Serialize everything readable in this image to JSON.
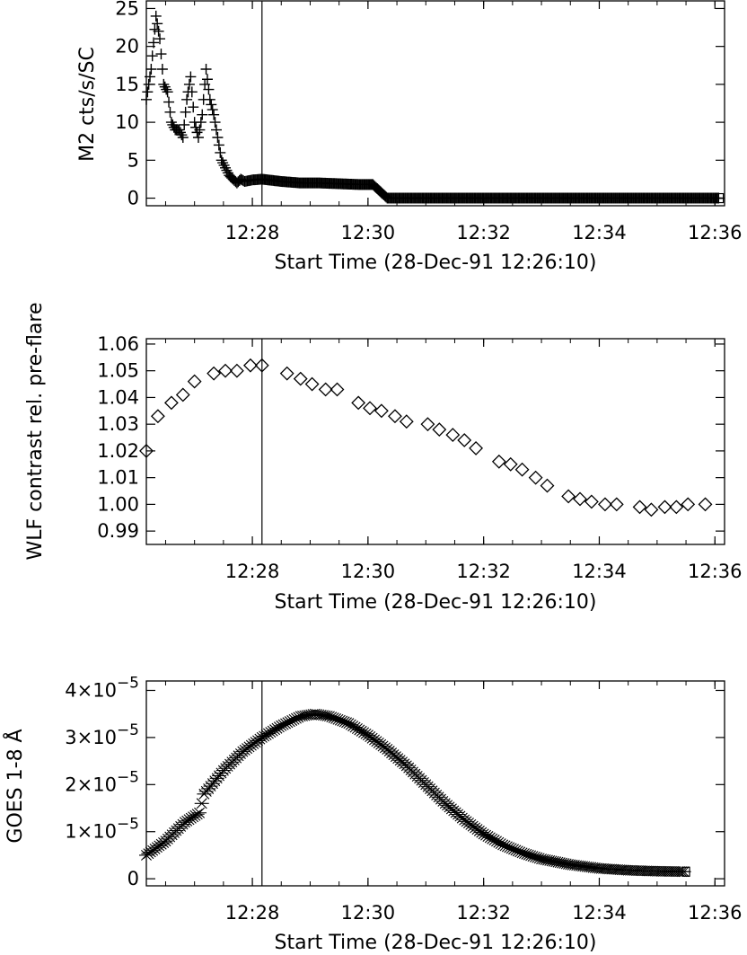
{
  "chart_data": [
    {
      "type": "scatter",
      "marker": "plus",
      "ylabel": "M2 cts/s/SC",
      "xlabel": "Start Time (28-Dec-91 12:26:10)",
      "xlim": [
        "12:26:10",
        "12:36:10"
      ],
      "ylim": [
        -1,
        26
      ],
      "x_ticks": [
        "12:28",
        "12:30",
        "12:32",
        "12:34",
        "12:36"
      ],
      "y_ticks": [
        "0",
        "5",
        "10",
        "15",
        "20",
        "25"
      ],
      "vertical_line_at": "12:28:10",
      "series": [
        {
          "x": [
            "12:26:10",
            "12:26:15",
            "12:26:20",
            "12:26:24",
            "12:26:28",
            "12:26:32",
            "12:26:36",
            "12:26:40",
            "12:26:44",
            "12:26:48",
            "12:26:52",
            "12:26:56",
            "12:27:00",
            "12:27:04",
            "12:27:08",
            "12:27:12",
            "12:27:16",
            "12:27:20",
            "12:27:24",
            "12:27:28",
            "12:27:32",
            "12:27:36",
            "12:27:40",
            "12:27:44",
            "12:27:48",
            "12:27:52",
            "12:27:56",
            "12:28:00",
            "12:28:10",
            "12:28:30",
            "12:28:50",
            "12:29:10",
            "12:29:30",
            "12:29:50",
            "12:30:05",
            "12:30:20",
            "12:31:00",
            "12:32:00",
            "12:33:00",
            "12:34:00",
            "12:35:00",
            "12:36:05"
          ],
          "y": [
            13,
            17,
            24,
            21,
            15,
            14,
            10,
            9,
            9,
            8,
            13,
            16,
            10,
            8,
            11,
            17,
            13,
            11,
            8,
            5,
            4,
            3,
            2.5,
            2,
            2.5,
            2.2,
            2.3,
            2.4,
            2.5,
            2.2,
            2.0,
            2.0,
            1.9,
            1.8,
            1.8,
            0,
            0,
            0,
            0,
            0,
            0,
            0
          ]
        }
      ]
    },
    {
      "type": "scatter",
      "marker": "diamond",
      "ylabel": "WLF contrast rel. pre-flare",
      "xlabel": "Start Time (28-Dec-91 12:26:10)",
      "xlim": [
        "12:26:10",
        "12:36:10"
      ],
      "ylim": [
        0.985,
        1.062
      ],
      "x_ticks": [
        "12:28",
        "12:30",
        "12:32",
        "12:34",
        "12:36"
      ],
      "y_ticks": [
        "0.99",
        "1.00",
        "1.01",
        "1.02",
        "1.03",
        "1.04",
        "1.05",
        "1.06"
      ],
      "vertical_line_at": "12:28:10",
      "series": [
        {
          "x": [
            "12:26:10",
            "12:26:22",
            "12:26:36",
            "12:26:48",
            "12:27:00",
            "12:27:20",
            "12:27:32",
            "12:27:44",
            "12:27:58",
            "12:28:10",
            "12:28:36",
            "12:28:50",
            "12:29:02",
            "12:29:16",
            "12:29:28",
            "12:29:50",
            "12:30:02",
            "12:30:14",
            "12:30:28",
            "12:30:40",
            "12:31:02",
            "12:31:14",
            "12:31:28",
            "12:31:40",
            "12:31:52",
            "12:32:16",
            "12:32:28",
            "12:32:40",
            "12:32:54",
            "12:33:06",
            "12:33:28",
            "12:33:40",
            "12:33:52",
            "12:34:06",
            "12:34:18",
            "12:34:42",
            "12:34:54",
            "12:35:08",
            "12:35:20",
            "12:35:32",
            "12:35:50"
          ],
          "y": [
            1.02,
            1.033,
            1.038,
            1.041,
            1.046,
            1.049,
            1.05,
            1.05,
            1.052,
            1.052,
            1.049,
            1.047,
            1.045,
            1.043,
            1.043,
            1.038,
            1.036,
            1.035,
            1.033,
            1.031,
            1.03,
            1.028,
            1.026,
            1.024,
            1.021,
            1.016,
            1.015,
            1.013,
            1.01,
            1.007,
            1.003,
            1.002,
            1.001,
            1.0,
            1.0,
            0.999,
            0.998,
            0.999,
            0.999,
            1.0,
            1.0
          ]
        }
      ]
    },
    {
      "type": "scatter",
      "marker": "asterisk",
      "ylabel": "GOES 1-8 Å",
      "xlabel": "Start Time (28-Dec-91 12:26:10)",
      "xlim": [
        "12:26:10",
        "12:36:10"
      ],
      "ylim": [
        -1.5e-06,
        4.2e-05
      ],
      "x_ticks": [
        "12:28",
        "12:30",
        "12:32",
        "12:34",
        "12:36"
      ],
      "y_ticks": [
        "0",
        "1×10−5",
        "2×10−5",
        "3×10−5",
        "4×10−5"
      ],
      "vertical_line_at": "12:28:10",
      "series": [
        {
          "x": [
            "12:26:10",
            "12:26:30",
            "12:26:50",
            "12:27:05",
            "12:27:10",
            "12:27:30",
            "12:27:50",
            "12:28:10",
            "12:28:30",
            "12:28:50",
            "12:29:05",
            "12:29:20",
            "12:29:40",
            "12:30:00",
            "12:30:20",
            "12:30:40",
            "12:31:00",
            "12:31:20",
            "12:31:40",
            "12:32:00",
            "12:32:20",
            "12:32:40",
            "12:33:00",
            "12:33:30",
            "12:34:00",
            "12:34:30",
            "12:35:00",
            "12:35:30"
          ],
          "y": [
            5e-06,
            8e-06,
            1.2e-05,
            1.4e-05,
            1.8e-05,
            2.3e-05,
            2.7e-05,
            3e-05,
            3.25e-05,
            3.45e-05,
            3.5e-05,
            3.45e-05,
            3.3e-05,
            3.05e-05,
            2.75e-05,
            2.4e-05,
            2e-05,
            1.6e-05,
            1.25e-05,
            9.5e-06,
            7.2e-06,
            5.5e-06,
            4.2e-06,
            3e-06,
            2.2e-06,
            1.8e-06,
            1.6e-06,
            1.5e-06
          ]
        }
      ]
    }
  ]
}
